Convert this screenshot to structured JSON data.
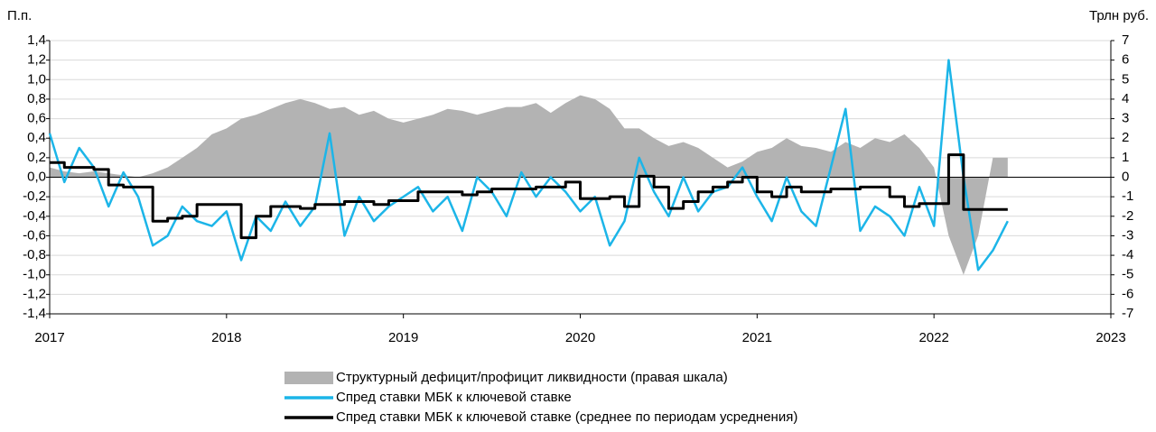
{
  "chart_data": {
    "type": "line",
    "y_label": "П.п.",
    "y2_label": "Трлн руб.",
    "x": [
      2017,
      2017.083,
      2017.167,
      2017.25,
      2017.333,
      2017.417,
      2017.5,
      2017.583,
      2017.667,
      2017.75,
      2017.833,
      2017.917,
      2018,
      2018.083,
      2018.167,
      2018.25,
      2018.333,
      2018.417,
      2018.5,
      2018.583,
      2018.667,
      2018.75,
      2018.833,
      2018.917,
      2019,
      2019.083,
      2019.167,
      2019.25,
      2019.333,
      2019.417,
      2019.5,
      2019.583,
      2019.667,
      2019.75,
      2019.833,
      2019.917,
      2020,
      2020.083,
      2020.167,
      2020.25,
      2020.333,
      2020.417,
      2020.5,
      2020.583,
      2020.667,
      2020.75,
      2020.833,
      2020.917,
      2021,
      2021.083,
      2021.167,
      2021.25,
      2021.333,
      2021.417,
      2021.5,
      2021.583,
      2021.667,
      2021.75,
      2021.833,
      2021.917,
      2022,
      2022.083,
      2022.167,
      2022.25,
      2022.333,
      2022.417
    ],
    "series": [
      {
        "name": "Структурный дефицит/профицит ликвидности (правая шкала)",
        "kind": "area",
        "axis": "y2",
        "color": "#b3b3b3",
        "values": [
          0.5,
          0.3,
          0.2,
          0.3,
          0.2,
          0.1,
          0.0,
          0.2,
          0.5,
          1.0,
          1.5,
          2.2,
          2.5,
          3.0,
          3.2,
          3.5,
          3.8,
          4.0,
          3.8,
          3.5,
          3.6,
          3.2,
          3.4,
          3.0,
          2.8,
          3.0,
          3.2,
          3.5,
          3.4,
          3.2,
          3.4,
          3.6,
          3.6,
          3.8,
          3.3,
          3.8,
          4.2,
          4.0,
          3.5,
          2.5,
          2.5,
          2.0,
          1.6,
          1.8,
          1.5,
          1.0,
          0.5,
          0.8,
          1.3,
          1.5,
          2.0,
          1.6,
          1.5,
          1.3,
          1.8,
          1.5,
          2.0,
          1.8,
          2.2,
          1.5,
          0.5,
          -3.0,
          -5.0,
          -3.0,
          1.0,
          1.0
        ]
      },
      {
        "name": "Спред ставки МБК к ключевой ставке",
        "kind": "line",
        "color": "#1cb5e8",
        "values": [
          0.45,
          -0.05,
          0.3,
          0.1,
          -0.3,
          0.05,
          -0.2,
          -0.7,
          -0.6,
          -0.3,
          -0.45,
          -0.5,
          -0.35,
          -0.85,
          -0.4,
          -0.55,
          -0.25,
          -0.5,
          -0.3,
          0.45,
          -0.6,
          -0.2,
          -0.45,
          -0.3,
          -0.2,
          -0.1,
          -0.35,
          -0.2,
          -0.55,
          0.0,
          -0.15,
          -0.4,
          0.05,
          -0.2,
          0.0,
          -0.15,
          -0.35,
          -0.2,
          -0.7,
          -0.45,
          0.2,
          -0.15,
          -0.4,
          0.0,
          -0.35,
          -0.15,
          -0.1,
          0.1,
          -0.2,
          -0.45,
          0.0,
          -0.35,
          -0.5,
          0.1,
          0.7,
          -0.55,
          -0.3,
          -0.4,
          -0.6,
          -0.1,
          -0.5,
          1.2,
          0.0,
          -0.95,
          -0.75,
          -0.45
        ]
      },
      {
        "name": "Спред ставки МБК к ключевой ставке (среднее по периодам усреднения)",
        "kind": "line",
        "step": true,
        "color": "#000000",
        "values": [
          0.15,
          0.1,
          0.1,
          0.08,
          -0.08,
          -0.1,
          -0.1,
          -0.45,
          -0.42,
          -0.4,
          -0.28,
          -0.28,
          -0.28,
          -0.62,
          -0.4,
          -0.3,
          -0.3,
          -0.32,
          -0.28,
          -0.28,
          -0.25,
          -0.25,
          -0.28,
          -0.24,
          -0.24,
          -0.15,
          -0.15,
          -0.15,
          -0.18,
          -0.15,
          -0.12,
          -0.12,
          -0.12,
          -0.1,
          -0.1,
          -0.05,
          -0.22,
          -0.22,
          -0.2,
          -0.3,
          0.01,
          -0.1,
          -0.32,
          -0.25,
          -0.15,
          -0.1,
          -0.05,
          0.0,
          -0.15,
          -0.2,
          -0.1,
          -0.15,
          -0.15,
          -0.12,
          -0.12,
          -0.1,
          -0.1,
          -0.2,
          -0.3,
          -0.27,
          -0.27,
          0.23,
          -0.33,
          -0.33,
          -0.33,
          -0.33
        ]
      }
    ],
    "xlim": [
      2017,
      2023
    ],
    "xticks": [
      2017,
      2018,
      2019,
      2020,
      2021,
      2022,
      2023
    ],
    "ylim": [
      -1.4,
      1.4
    ],
    "yticks": [
      {
        "value": 1.4,
        "label": "1,4"
      },
      {
        "value": 1.2,
        "label": "1,2"
      },
      {
        "value": 1.0,
        "label": "1,0"
      },
      {
        "value": 0.8,
        "label": "0,8"
      },
      {
        "value": 0.6,
        "label": "0,6"
      },
      {
        "value": 0.4,
        "label": "0,4"
      },
      {
        "value": 0.2,
        "label": "0,2"
      },
      {
        "value": 0,
        "label": "0,0"
      },
      {
        "value": -0.2,
        "label": "-0,2"
      },
      {
        "value": -0.4,
        "label": "-0,4"
      },
      {
        "value": -0.6,
        "label": "-0,6"
      },
      {
        "value": -0.8,
        "label": "-0,8"
      },
      {
        "value": -1.0,
        "label": "-1,0"
      },
      {
        "value": -1.2,
        "label": "-1,2"
      },
      {
        "value": -1.4,
        "label": "-1,4"
      }
    ],
    "y2lim": [
      -7,
      7
    ],
    "y2ticks": [
      7,
      6,
      5,
      4,
      3,
      2,
      1,
      0,
      -1,
      -2,
      -3,
      -4,
      -5,
      -6,
      -7
    ],
    "grid": true,
    "legend": "bottom"
  }
}
